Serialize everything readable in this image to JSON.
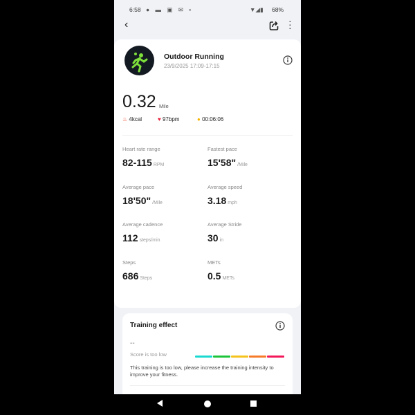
{
  "status_bar": {
    "time": "6:58",
    "battery": "68%"
  },
  "header": {
    "back_icon": "chevron-left-icon",
    "share_icon": "share-icon",
    "more_icon": "more-vertical-icon"
  },
  "workout": {
    "title": "Outdoor Running",
    "datetime": "23/9/2025 17:09-17:15",
    "distance": "0.32",
    "distance_unit": "Mile",
    "calories": "4kcal",
    "heart_rate": "97bpm",
    "duration": "00:06:06"
  },
  "stats": [
    {
      "label": "Heart rate range",
      "value": "82-115",
      "unit": "RPM"
    },
    {
      "label": "Fastest pace",
      "value": "15'58\"",
      "unit": "/Mile"
    },
    {
      "label": "Average pace",
      "value": "18'50\"",
      "unit": "/Mile"
    },
    {
      "label": "Average speed",
      "value": "3.18",
      "unit": "mph"
    },
    {
      "label": "Average cadence",
      "value": "112",
      "unit": "steps/min"
    },
    {
      "label": "Average Stride",
      "value": "30",
      "unit": "in"
    },
    {
      "label": "Steps",
      "value": "686",
      "unit": "Steps"
    },
    {
      "label": "METs",
      "value": "0.5",
      "unit": "METs"
    }
  ],
  "training": {
    "title": "Training effect",
    "score": "--",
    "score_label": "Score is too low",
    "message": "This training is too low, please increase the training intensity to improve your fitness.",
    "scale_colors": [
      "#1ad9d0",
      "#1cc43a",
      "#f5c31c",
      "#f57a2a",
      "#f2185a"
    ]
  },
  "colors": {
    "accent": "#7ee03a",
    "background": "#f0f2f5"
  }
}
